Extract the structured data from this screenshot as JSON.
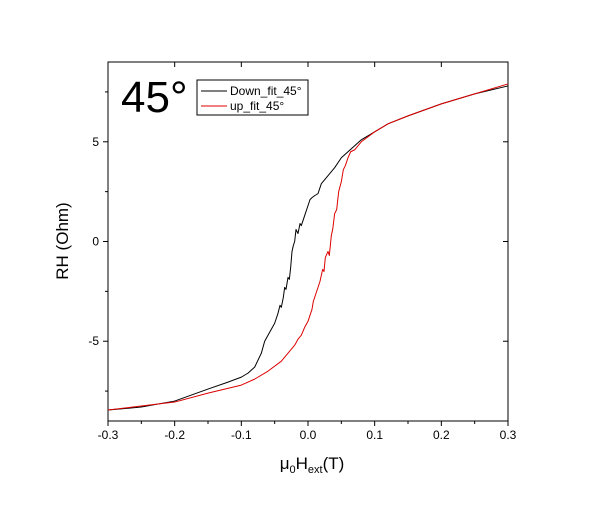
{
  "chart_data": {
    "type": "line",
    "title": "",
    "annotation": "45°",
    "xlabel": {
      "base": "μ",
      "base_sub": "0",
      "main": "H",
      "main_sub": "ext",
      "suffix": "(T)"
    },
    "ylabel": "RH (Ohm)",
    "xlim": [
      -0.3,
      0.3
    ],
    "ylim": [
      -9,
      9
    ],
    "x_ticks": [
      -0.3,
      -0.2,
      -0.1,
      0.0,
      0.1,
      0.2,
      0.3
    ],
    "x_tick_labels": [
      "-0.3",
      "-0.2",
      "-0.1",
      "0.0",
      "0.1",
      "0.2",
      "0.3"
    ],
    "y_ticks": [
      -5,
      0,
      5
    ],
    "y_tick_labels": [
      "-5",
      "0",
      "5"
    ],
    "grid": false,
    "legend_position": "top-left",
    "series": [
      {
        "name": "Down_fit_45°",
        "color": "#000000",
        "points": [
          [
            -0.3,
            -8.45
          ],
          [
            -0.25,
            -8.3
          ],
          [
            -0.2,
            -8.0
          ],
          [
            -0.15,
            -7.4
          ],
          [
            -0.12,
            -7.05
          ],
          [
            -0.1,
            -6.8
          ],
          [
            -0.09,
            -6.6
          ],
          [
            -0.08,
            -6.3
          ],
          [
            -0.07,
            -5.6
          ],
          [
            -0.065,
            -5.0
          ],
          [
            -0.06,
            -4.7
          ],
          [
            -0.055,
            -4.4
          ],
          [
            -0.05,
            -4.1
          ],
          [
            -0.045,
            -3.6
          ],
          [
            -0.042,
            -3.2
          ],
          [
            -0.04,
            -3.3
          ],
          [
            -0.037,
            -2.8
          ],
          [
            -0.035,
            -2.3
          ],
          [
            -0.033,
            -2.4
          ],
          [
            -0.03,
            -1.8
          ],
          [
            -0.028,
            -1.9
          ],
          [
            -0.026,
            -1.3
          ],
          [
            -0.024,
            -0.5
          ],
          [
            -0.022,
            -0.2
          ],
          [
            -0.02,
            0.0
          ],
          [
            -0.018,
            0.6
          ],
          [
            -0.015,
            0.4
          ],
          [
            -0.012,
            0.9
          ],
          [
            -0.01,
            0.8
          ],
          [
            -0.005,
            1.3
          ],
          [
            0.0,
            1.8
          ],
          [
            0.003,
            2.1
          ],
          [
            0.006,
            2.2
          ],
          [
            0.01,
            2.3
          ],
          [
            0.015,
            2.4
          ],
          [
            0.02,
            2.9
          ],
          [
            0.025,
            3.1
          ],
          [
            0.03,
            3.3
          ],
          [
            0.035,
            3.5
          ],
          [
            0.04,
            3.7
          ],
          [
            0.05,
            4.2
          ],
          [
            0.06,
            4.5
          ],
          [
            0.07,
            4.8
          ],
          [
            0.08,
            5.1
          ],
          [
            0.1,
            5.5
          ],
          [
            0.12,
            5.9
          ],
          [
            0.15,
            6.3
          ],
          [
            0.2,
            6.9
          ],
          [
            0.25,
            7.4
          ],
          [
            0.3,
            7.8
          ]
        ]
      },
      {
        "name": "up_fit_45°",
        "color": "#dd0000",
        "points": [
          [
            -0.3,
            -8.45
          ],
          [
            -0.25,
            -8.25
          ],
          [
            -0.2,
            -8.05
          ],
          [
            -0.15,
            -7.6
          ],
          [
            -0.1,
            -7.2
          ],
          [
            -0.08,
            -6.9
          ],
          [
            -0.06,
            -6.5
          ],
          [
            -0.04,
            -6.0
          ],
          [
            -0.03,
            -5.6
          ],
          [
            -0.02,
            -5.2
          ],
          [
            -0.015,
            -4.9
          ],
          [
            -0.01,
            -4.7
          ],
          [
            -0.005,
            -4.3
          ],
          [
            0.0,
            -4.0
          ],
          [
            0.003,
            -3.7
          ],
          [
            0.006,
            -3.4
          ],
          [
            0.008,
            -3.0
          ],
          [
            0.011,
            -2.7
          ],
          [
            0.013,
            -2.5
          ],
          [
            0.016,
            -2.2
          ],
          [
            0.018,
            -2.0
          ],
          [
            0.02,
            -1.7
          ],
          [
            0.022,
            -1.4
          ],
          [
            0.024,
            -1.5
          ],
          [
            0.026,
            -0.8
          ],
          [
            0.03,
            -0.5
          ],
          [
            0.032,
            -0.7
          ],
          [
            0.035,
            0.3
          ],
          [
            0.037,
            0.6
          ],
          [
            0.04,
            1.4
          ],
          [
            0.043,
            1.6
          ],
          [
            0.046,
            2.5
          ],
          [
            0.05,
            3.0
          ],
          [
            0.053,
            3.6
          ],
          [
            0.056,
            3.8
          ],
          [
            0.06,
            4.2
          ],
          [
            0.064,
            4.5
          ],
          [
            0.07,
            4.6
          ],
          [
            0.08,
            5.0
          ],
          [
            0.1,
            5.5
          ],
          [
            0.12,
            5.9
          ],
          [
            0.15,
            6.3
          ],
          [
            0.2,
            6.9
          ],
          [
            0.25,
            7.4
          ],
          [
            0.3,
            7.9
          ]
        ]
      }
    ]
  }
}
